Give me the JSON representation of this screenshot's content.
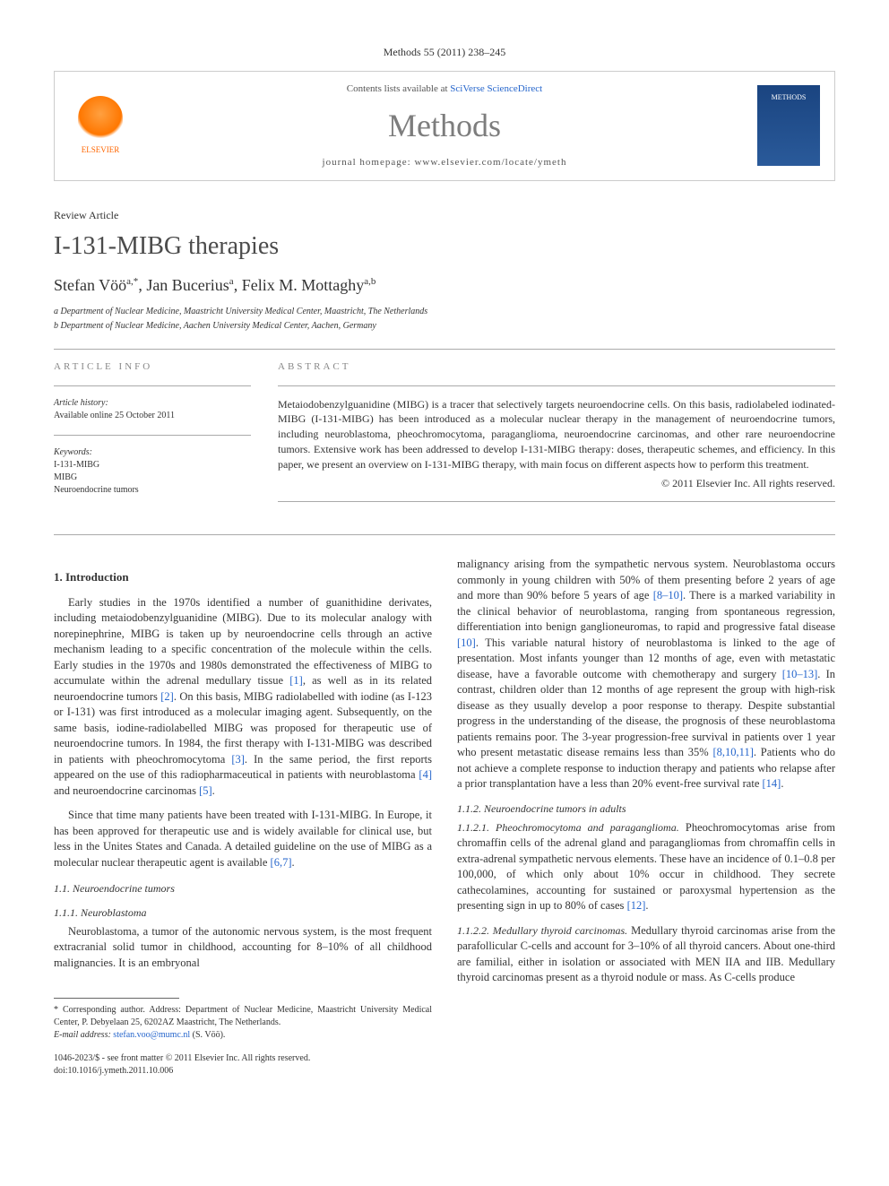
{
  "journal_ref": "Methods 55 (2011) 238–245",
  "header": {
    "contents_prefix": "Contents lists available at ",
    "contents_link": "SciVerse ScienceDirect",
    "journal_name": "Methods",
    "homepage_prefix": "journal homepage: ",
    "homepage_url": "www.elsevier.com/locate/ymeth",
    "publisher_label": "ELSEVIER",
    "cover_label": "METHODS"
  },
  "article": {
    "type": "Review Article",
    "title": "I-131-MIBG therapies",
    "authors_html": "Stefan Vöö",
    "author1": "Stefan Vöö",
    "author1_sup": "a,*",
    "author2": "Jan Bucerius",
    "author2_sup": "a",
    "author3": "Felix M. Mottaghy",
    "author3_sup": "a,b",
    "aff_a": "a Department of Nuclear Medicine, Maastricht University Medical Center, Maastricht, The Netherlands",
    "aff_b": "b Department of Nuclear Medicine, Aachen University Medical Center, Aachen, Germany"
  },
  "info": {
    "label": "ARTICLE INFO",
    "history_label": "Article history:",
    "history_line": "Available online 25 October 2011",
    "keywords_label": "Keywords:",
    "kw1": "I-131-MIBG",
    "kw2": "MIBG",
    "kw3": "Neuroendocrine tumors"
  },
  "abstract": {
    "label": "ABSTRACT",
    "text": "Metaiodobenzylguanidine (MIBG) is a tracer that selectively targets neuroendocrine cells. On this basis, radiolabeled iodinated-MIBG (I-131-MIBG) has been introduced as a molecular nuclear therapy in the management of neuroendocrine tumors, including neuroblastoma, pheochromocytoma, paraganglioma, neuroendocrine carcinomas, and other rare neuroendocrine tumors. Extensive work has been addressed to develop I-131-MIBG therapy: doses, therapeutic schemes, and efficiency. In this paper, we present an overview on I-131-MIBG therapy, with main focus on different aspects how to perform this treatment.",
    "copyright": "© 2011 Elsevier Inc. All rights reserved."
  },
  "body": {
    "s1_heading": "1. Introduction",
    "s1_p1_a": "Early studies in the 1970s identified a number of guanithidine derivates, including metaiodobenzylguanidine (MIBG). Due to its molecular analogy with norepinephrine, MIBG is taken up by neuroendocrine cells through an active mechanism leading to a specific concentration of the molecule within the cells. Early studies in the 1970s and 1980s demonstrated the effectiveness of MIBG to accumulate within the adrenal medullary tissue ",
    "ref1": "[1]",
    "s1_p1_b": ", as well as in its related neuroendocrine tumors ",
    "ref2": "[2]",
    "s1_p1_c": ". On this basis, MIBG radiolabelled with iodine (as I-123 or I-131) was first introduced as a molecular imaging agent. Subsequently, on the same basis, iodine-radiolabelled MIBG was proposed for therapeutic use of neuroendocrine tumors. In 1984, the first therapy with I-131-MIBG was described in patients with pheochromocytoma ",
    "ref3": "[3]",
    "s1_p1_d": ". In the same period, the first reports appeared on the use of this radiopharmaceutical in patients with neuroblastoma ",
    "ref4": "[4]",
    "s1_p1_e": " and neuroendocrine carcinomas ",
    "ref5": "[5]",
    "s1_p1_f": ".",
    "s1_p2_a": "Since that time many patients have been treated with I-131-MIBG. In Europe, it has been approved for therapeutic use and is widely available for clinical use, but less in the Unites States and Canada. A detailed guideline on the use of MIBG as a molecular nuclear therapeutic agent is available ",
    "ref67": "[6,7]",
    "s1_p2_b": ".",
    "s11_heading": "1.1. Neuroendocrine tumors",
    "s111_heading": "1.1.1. Neuroblastoma",
    "s111_p1": "Neuroblastoma, a tumor of the autonomic nervous system, is the most frequent extracranial solid tumor in childhood, accounting for 8–10% of all childhood malignancies. It is an embryonal",
    "col2_p1_a": "malignancy arising from the sympathetic nervous system. Neuroblastoma occurs commonly in young children with 50% of them presenting before 2 years of age and more than 90% before 5 years of age ",
    "ref810": "[8–10]",
    "col2_p1_b": ". There is a marked variability in the clinical behavior of neuroblastoma, ranging from spontaneous regression, differentiation into benign ganglioneuromas, to rapid and progressive fatal disease ",
    "ref10": "[10]",
    "col2_p1_c": ". This variable natural history of neuroblastoma is linked to the age of presentation. Most infants younger than 12 months of age, even with metastatic disease, have a favorable outcome with chemotherapy and surgery ",
    "ref1013": "[10–13]",
    "col2_p1_d": ". In contrast, children older than 12 months of age represent the group with high-risk disease as they usually develop a poor response to therapy. Despite substantial progress in the understanding of the disease, the prognosis of these neuroblastoma patients remains poor. The 3-year progression-free survival in patients over 1 year who present metastatic disease remains less than 35% ",
    "ref81011": "[8,10,11]",
    "col2_p1_e": ". Patients who do not achieve a complete response to induction therapy and patients who relapse after a prior transplantation have a less than 20% event-free survival rate ",
    "ref14": "[14]",
    "col2_p1_f": ".",
    "s112_heading": "1.1.2. Neuroendocrine tumors in adults",
    "s1121_heading": "1.1.2.1. Pheochromocytoma and paraganglioma.",
    "s1121_text_a": " Pheochromocytomas arise from chromaffin cells of the adrenal gland and paragangliomas from chromaffin cells in extra-adrenal sympathetic nervous elements. These have an incidence of 0.1–0.8 per 100,000, of which only about 10% occur in childhood. They secrete cathecolamines, accounting for sustained or paroxysmal hypertension as the presenting sign in up to 80% of cases ",
    "ref12": "[12]",
    "s1121_text_b": ".",
    "s1122_heading": "1.1.2.2. Medullary thyroid carcinomas.",
    "s1122_text": " Medullary thyroid carcinomas arise from the parafollicular C-cells and account for 3–10% of all thyroid cancers. About one-third are familial, either in isolation or associated with MEN IIA and IIB. Medullary thyroid carcinomas present as a thyroid nodule or mass. As C-cells produce"
  },
  "footnote": {
    "marker": "*",
    "label": "Corresponding author. Address: Department of Nuclear Medicine, Maastricht University Medical Center, P. Debyelaan 25, 6202AZ Maastricht, The Netherlands.",
    "email_label": "E-mail address:",
    "email": "stefan.voo@mumc.nl",
    "email_suffix": "(S. Vöö)."
  },
  "bottom": {
    "line1": "1046-2023/$ - see front matter © 2011 Elsevier Inc. All rights reserved.",
    "line2": "doi:10.1016/j.ymeth.2011.10.006"
  }
}
